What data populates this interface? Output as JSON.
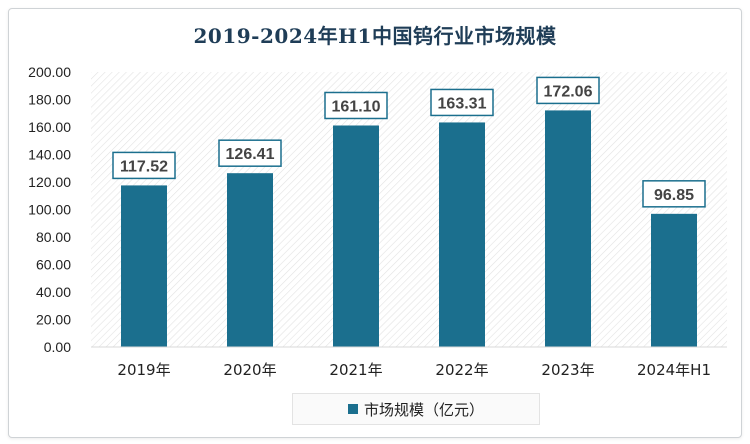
{
  "chart_data": {
    "type": "bar",
    "title": "2019-2024年H1中国钨行业市场规模",
    "categories": [
      "2019年",
      "2020年",
      "2021年",
      "2022年",
      "2023年",
      "2024年H1"
    ],
    "series": [
      {
        "name": "市场规模（亿元）",
        "values": [
          117.52,
          126.41,
          161.1,
          163.31,
          172.06,
          96.85
        ]
      }
    ],
    "data_labels": [
      "117.52",
      "126.41",
      "161.10",
      "163.31",
      "172.06",
      "96.85"
    ],
    "yticks": [
      "0.00",
      "20.00",
      "40.00",
      "60.00",
      "80.00",
      "100.00",
      "120.00",
      "140.00",
      "160.00",
      "180.00",
      "200.00"
    ],
    "ylim": [
      0,
      200
    ],
    "grid": false,
    "legend_position": "bottom",
    "bar_color": "#1b6f8e",
    "title_color": "#1f3d57"
  }
}
